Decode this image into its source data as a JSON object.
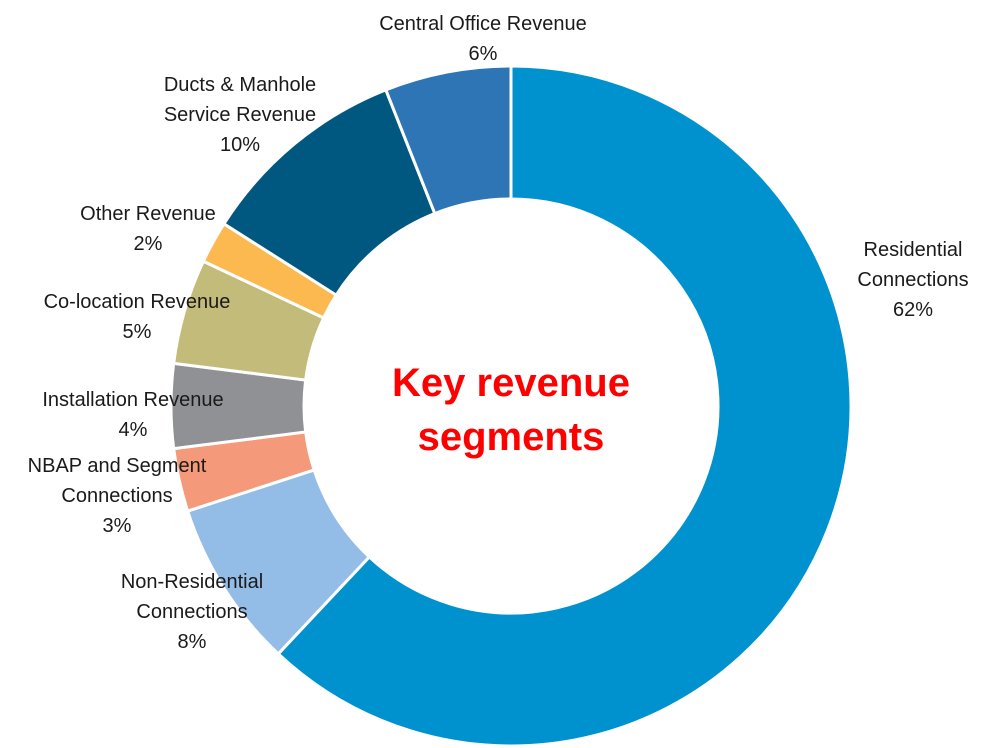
{
  "chart_data": {
    "type": "donut",
    "center_text": "Key revenue segments",
    "categories": [
      "Residential Connections",
      "Non-Residential Connections",
      "NBAP and Segment Connections",
      "Installation Revenue",
      "Co-location Revenue",
      "Other Revenue",
      "Ducts & Manhole Service Revenue",
      "Central Office Revenue"
    ],
    "values": [
      62,
      8,
      3,
      4,
      5,
      2,
      10,
      6
    ],
    "value_labels": [
      "62%",
      "8%",
      "3%",
      "4%",
      "5%",
      "2%",
      "10%",
      "6%"
    ],
    "colors": [
      "#0092cf",
      "#93bde6",
      "#f4997a",
      "#8f9195",
      "#c3bb7a",
      "#fbb94f",
      "#005880",
      "#2e75b6"
    ]
  }
}
